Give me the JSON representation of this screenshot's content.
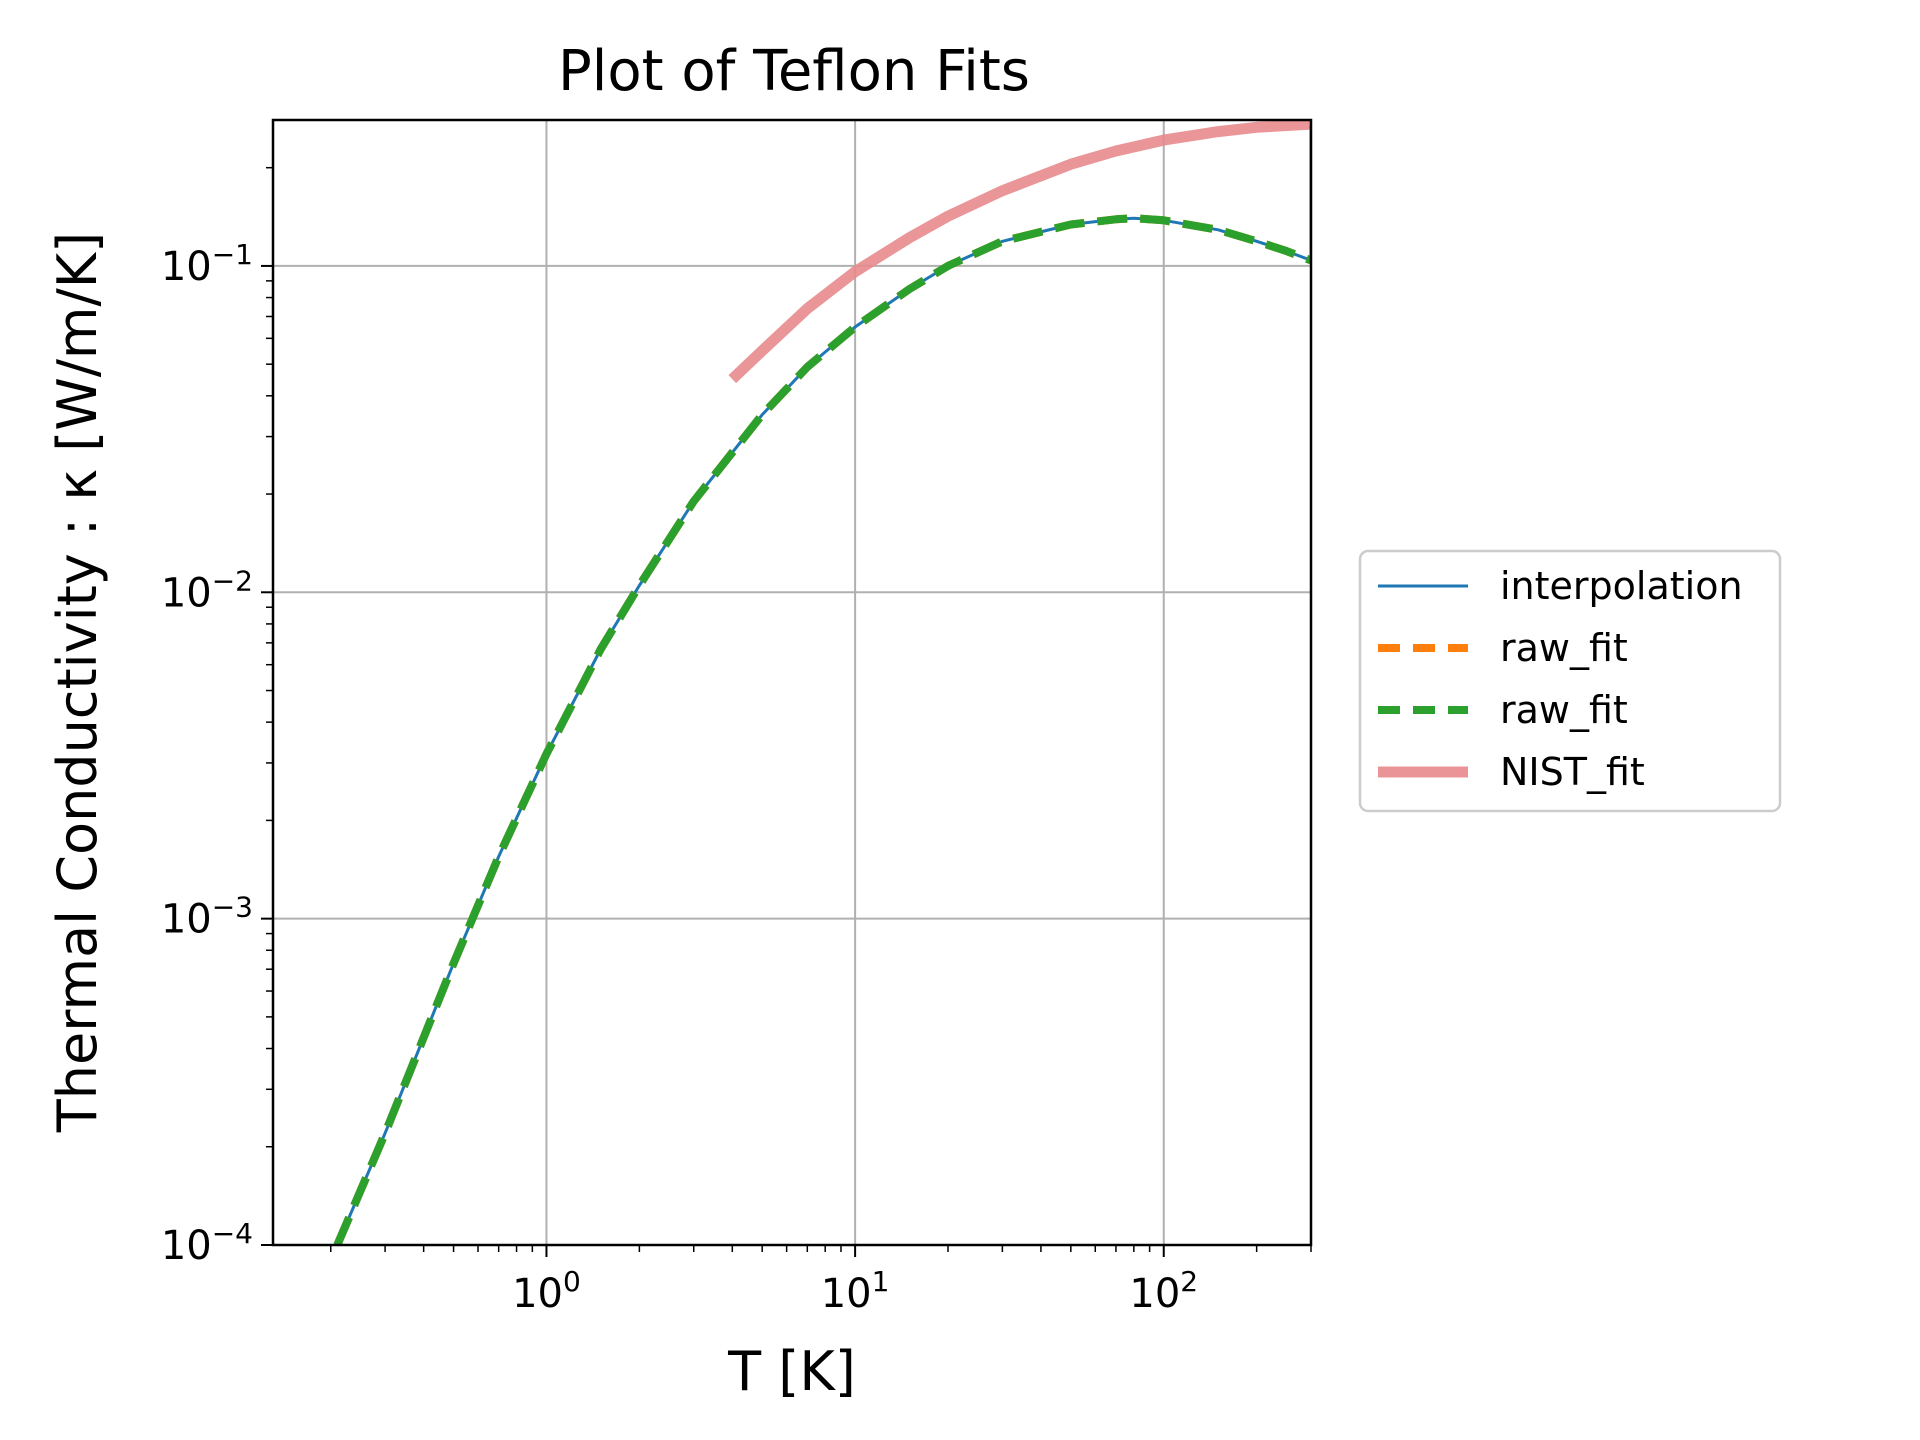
{
  "chart_data": {
    "type": "line",
    "title": "Plot of Teflon Fits",
    "xlabel": "T [K]",
    "ylabel": "Thermal Conductivity : κ [W/m/K]",
    "xscale": "log",
    "yscale": "log",
    "xlim": [
      0.13,
      300
    ],
    "ylim": [
      0.0001,
      0.28
    ],
    "grid": true,
    "legend_placement": "outside-right",
    "x_ticks": [
      {
        "value": 1,
        "base": "10",
        "exp": "0"
      },
      {
        "value": 10,
        "base": "10",
        "exp": "1"
      },
      {
        "value": 100,
        "base": "10",
        "exp": "2"
      }
    ],
    "y_ticks": [
      {
        "value": 0.0001,
        "base": "10",
        "exp": "−4"
      },
      {
        "value": 0.001,
        "base": "10",
        "exp": "−3"
      },
      {
        "value": 0.01,
        "base": "10",
        "exp": "−2"
      },
      {
        "value": 0.1,
        "base": "10",
        "exp": "−1"
      }
    ],
    "series": [
      {
        "name": "interpolation",
        "color": "#1f77b4",
        "style": "solid",
        "x": [
          0.21,
          0.3,
          0.5,
          0.7,
          1,
          1.5,
          2,
          3,
          5,
          7,
          10,
          15,
          20,
          30,
          50,
          70,
          80,
          100,
          150,
          200,
          250,
          300,
          300
        ],
        "y": [
          0.0001,
          0.00022,
          0.00073,
          0.00155,
          0.0032,
          0.0067,
          0.0105,
          0.019,
          0.035,
          0.049,
          0.065,
          0.085,
          0.1,
          0.119,
          0.134,
          0.139,
          0.14,
          0.138,
          0.129,
          0.119,
          0.111,
          0.104,
          0.27
        ]
      },
      {
        "name": "raw_fit",
        "color": "#ff7f0e",
        "style": "dashed",
        "x": [
          0.21,
          0.3,
          0.5,
          0.7,
          1,
          1.5,
          2,
          3,
          5,
          7,
          10,
          15,
          20,
          30,
          50,
          70,
          80,
          100,
          150,
          200,
          250,
          300
        ],
        "y": [
          0.0001,
          0.00022,
          0.00073,
          0.00155,
          0.0032,
          0.0067,
          0.0105,
          0.019,
          0.035,
          0.049,
          0.065,
          0.085,
          0.1,
          0.119,
          0.134,
          0.139,
          0.14,
          0.138,
          0.129,
          0.119,
          0.111,
          0.104
        ]
      },
      {
        "name": "raw_fit",
        "color": "#2ca02c",
        "style": "dashed",
        "x": [
          0.21,
          0.3,
          0.5,
          0.7,
          1,
          1.5,
          2,
          3,
          5,
          7,
          10,
          15,
          20,
          30,
          50,
          70,
          80,
          100,
          150,
          200,
          250,
          300
        ],
        "y": [
          0.0001,
          0.00022,
          0.00073,
          0.00155,
          0.0032,
          0.0067,
          0.0105,
          0.019,
          0.035,
          0.049,
          0.065,
          0.085,
          0.1,
          0.119,
          0.134,
          0.139,
          0.14,
          0.138,
          0.129,
          0.119,
          0.111,
          0.104
        ]
      },
      {
        "name": "NIST_fit",
        "color": "#e8898c",
        "style": "solid",
        "x": [
          4,
          5,
          7,
          10,
          15,
          20,
          30,
          50,
          70,
          100,
          150,
          200,
          300
        ],
        "y": [
          0.045,
          0.055,
          0.074,
          0.096,
          0.122,
          0.142,
          0.17,
          0.205,
          0.225,
          0.243,
          0.258,
          0.266,
          0.272
        ]
      }
    ]
  }
}
